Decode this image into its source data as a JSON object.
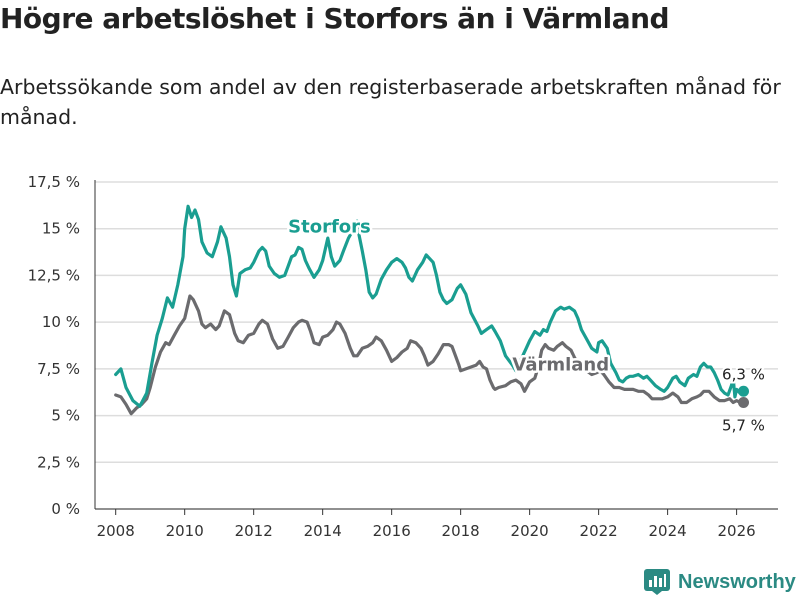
{
  "header": {
    "title": "Högre arbetslöshet i Storfors än i Värmland",
    "subtitle": "Arbetssökande som andel av den registerbaserade arbetskraften månad för månad."
  },
  "brand": {
    "name": "Newsworthy",
    "icon": "bar-chart-logo-icon"
  },
  "colors": {
    "storfors": "#1a9e91",
    "varmland": "#6b6b6e",
    "grid": "#dddddd",
    "axis": "#333333"
  },
  "chart_data": {
    "type": "line",
    "title": "Högre arbetslöshet i Storfors än i Värmland",
    "xlabel": "",
    "ylabel": "",
    "xlim": [
      2007.4,
      2027.2
    ],
    "ylim": [
      0,
      17.5
    ],
    "x_ticks": [
      2008,
      2010,
      2012,
      2014,
      2016,
      2018,
      2020,
      2022,
      2024,
      2026
    ],
    "x_tick_labels": [
      "2008",
      "2010",
      "2012",
      "2014",
      "2016",
      "2018",
      "2020",
      "2022",
      "2024",
      "2026"
    ],
    "y_ticks": [
      0,
      2.5,
      5,
      7.5,
      10,
      12.5,
      15,
      17.5
    ],
    "y_tick_labels": [
      "0 %",
      "2,5 %",
      "5 %",
      "7,5 %",
      "10 %",
      "12,5 %",
      "15 %",
      "17,5 %"
    ],
    "grid": true,
    "series": [
      {
        "name": "Storfors",
        "label_position": [
          2013.0,
          14.8
        ],
        "end_label": "6,3 %",
        "end_value": 6.3,
        "points": [
          [
            2008.0,
            7.2
          ],
          [
            2008.15,
            7.5
          ],
          [
            2008.3,
            6.5
          ],
          [
            2008.5,
            5.8
          ],
          [
            2008.7,
            5.5
          ],
          [
            2008.9,
            6.2
          ],
          [
            2009.05,
            7.8
          ],
          [
            2009.2,
            9.3
          ],
          [
            2009.35,
            10.2
          ],
          [
            2009.5,
            11.3
          ],
          [
            2009.65,
            10.8
          ],
          [
            2009.8,
            12.0
          ],
          [
            2009.95,
            13.5
          ],
          [
            2010.0,
            15.0
          ],
          [
            2010.1,
            16.2
          ],
          [
            2010.2,
            15.6
          ],
          [
            2010.3,
            16.0
          ],
          [
            2010.4,
            15.5
          ],
          [
            2010.5,
            14.3
          ],
          [
            2010.65,
            13.7
          ],
          [
            2010.8,
            13.5
          ],
          [
            2010.95,
            14.3
          ],
          [
            2011.05,
            15.1
          ],
          [
            2011.2,
            14.5
          ],
          [
            2011.3,
            13.5
          ],
          [
            2011.4,
            12.0
          ],
          [
            2011.5,
            11.4
          ],
          [
            2011.6,
            12.6
          ],
          [
            2011.75,
            12.8
          ],
          [
            2011.9,
            12.9
          ],
          [
            2012.0,
            13.2
          ],
          [
            2012.15,
            13.8
          ],
          [
            2012.25,
            14.0
          ],
          [
            2012.35,
            13.8
          ],
          [
            2012.45,
            13.0
          ],
          [
            2012.6,
            12.6
          ],
          [
            2012.75,
            12.4
          ],
          [
            2012.9,
            12.5
          ],
          [
            2013.0,
            13.0
          ],
          [
            2013.1,
            13.5
          ],
          [
            2013.2,
            13.6
          ],
          [
            2013.3,
            14.0
          ],
          [
            2013.4,
            13.9
          ],
          [
            2013.5,
            13.3
          ],
          [
            2013.6,
            12.9
          ],
          [
            2013.75,
            12.4
          ],
          [
            2013.9,
            12.8
          ],
          [
            2014.0,
            13.3
          ],
          [
            2014.15,
            14.5
          ],
          [
            2014.25,
            13.5
          ],
          [
            2014.35,
            13.0
          ],
          [
            2014.5,
            13.3
          ],
          [
            2014.6,
            13.8
          ],
          [
            2014.75,
            14.5
          ],
          [
            2014.9,
            15.0
          ],
          [
            2015.0,
            15.4
          ],
          [
            2015.05,
            14.7
          ],
          [
            2015.15,
            13.8
          ],
          [
            2015.25,
            12.8
          ],
          [
            2015.35,
            11.6
          ],
          [
            2015.45,
            11.3
          ],
          [
            2015.55,
            11.5
          ],
          [
            2015.7,
            12.3
          ],
          [
            2015.85,
            12.8
          ],
          [
            2016.0,
            13.2
          ],
          [
            2016.15,
            13.4
          ],
          [
            2016.3,
            13.2
          ],
          [
            2016.4,
            12.9
          ],
          [
            2016.5,
            12.4
          ],
          [
            2016.6,
            12.2
          ],
          [
            2016.75,
            12.8
          ],
          [
            2016.9,
            13.2
          ],
          [
            2017.0,
            13.6
          ],
          [
            2017.1,
            13.4
          ],
          [
            2017.2,
            13.2
          ],
          [
            2017.3,
            12.5
          ],
          [
            2017.4,
            11.6
          ],
          [
            2017.5,
            11.2
          ],
          [
            2017.6,
            11.0
          ],
          [
            2017.75,
            11.2
          ],
          [
            2017.9,
            11.8
          ],
          [
            2018.0,
            12.0
          ],
          [
            2018.15,
            11.5
          ],
          [
            2018.3,
            10.5
          ],
          [
            2018.5,
            9.8
          ],
          [
            2018.6,
            9.4
          ],
          [
            2018.75,
            9.6
          ],
          [
            2018.9,
            9.8
          ],
          [
            2019.0,
            9.5
          ],
          [
            2019.15,
            9.0
          ],
          [
            2019.3,
            8.2
          ],
          [
            2019.5,
            7.7
          ],
          [
            2019.6,
            7.4
          ],
          [
            2019.75,
            8.0
          ],
          [
            2019.9,
            8.6
          ],
          [
            2020.0,
            9.0
          ],
          [
            2020.15,
            9.5
          ],
          [
            2020.3,
            9.3
          ],
          [
            2020.4,
            9.6
          ],
          [
            2020.5,
            9.5
          ],
          [
            2020.6,
            10.0
          ],
          [
            2020.75,
            10.6
          ],
          [
            2020.9,
            10.8
          ],
          [
            2021.0,
            10.7
          ],
          [
            2021.15,
            10.8
          ],
          [
            2021.3,
            10.6
          ],
          [
            2021.4,
            10.2
          ],
          [
            2021.5,
            9.6
          ],
          [
            2021.65,
            9.1
          ],
          [
            2021.8,
            8.6
          ],
          [
            2021.95,
            8.4
          ],
          [
            2022.0,
            8.9
          ],
          [
            2022.1,
            9.0
          ],
          [
            2022.25,
            8.6
          ],
          [
            2022.35,
            7.8
          ],
          [
            2022.5,
            7.3
          ],
          [
            2022.6,
            6.9
          ],
          [
            2022.7,
            6.8
          ],
          [
            2022.8,
            7.0
          ],
          [
            2022.9,
            7.1
          ],
          [
            2023.0,
            7.1
          ],
          [
            2023.15,
            7.2
          ],
          [
            2023.3,
            7.0
          ],
          [
            2023.4,
            7.1
          ],
          [
            2023.5,
            6.9
          ],
          [
            2023.65,
            6.6
          ],
          [
            2023.8,
            6.4
          ],
          [
            2023.9,
            6.3
          ],
          [
            2024.0,
            6.5
          ],
          [
            2024.15,
            7.0
          ],
          [
            2024.25,
            7.1
          ],
          [
            2024.35,
            6.8
          ],
          [
            2024.5,
            6.6
          ],
          [
            2024.6,
            7.0
          ],
          [
            2024.75,
            7.2
          ],
          [
            2024.85,
            7.1
          ],
          [
            2024.95,
            7.6
          ],
          [
            2025.05,
            7.8
          ],
          [
            2025.15,
            7.6
          ],
          [
            2025.25,
            7.6
          ],
          [
            2025.35,
            7.3
          ],
          [
            2025.45,
            6.9
          ],
          [
            2025.55,
            6.4
          ],
          [
            2025.65,
            6.2
          ],
          [
            2025.75,
            6.1
          ],
          [
            2025.85,
            6.6
          ],
          [
            2025.9,
            7.0
          ],
          [
            2025.95,
            6.0
          ],
          [
            2026.0,
            6.4
          ],
          [
            2026.1,
            6.2
          ],
          [
            2026.2,
            6.3
          ]
        ]
      },
      {
        "name": "Värmland",
        "label_position": [
          2019.5,
          7.4
        ],
        "end_label": "5,7 %",
        "end_value": 5.7,
        "points": [
          [
            2008.0,
            6.1
          ],
          [
            2008.15,
            6.0
          ],
          [
            2008.3,
            5.6
          ],
          [
            2008.45,
            5.1
          ],
          [
            2008.6,
            5.4
          ],
          [
            2008.75,
            5.6
          ],
          [
            2008.9,
            5.9
          ],
          [
            2009.0,
            6.5
          ],
          [
            2009.15,
            7.6
          ],
          [
            2009.3,
            8.4
          ],
          [
            2009.45,
            8.9
          ],
          [
            2009.55,
            8.8
          ],
          [
            2009.7,
            9.3
          ],
          [
            2009.85,
            9.8
          ],
          [
            2010.0,
            10.2
          ],
          [
            2010.15,
            11.4
          ],
          [
            2010.25,
            11.2
          ],
          [
            2010.4,
            10.6
          ],
          [
            2010.5,
            9.9
          ],
          [
            2010.6,
            9.7
          ],
          [
            2010.75,
            9.9
          ],
          [
            2010.9,
            9.6
          ],
          [
            2011.0,
            9.8
          ],
          [
            2011.15,
            10.6
          ],
          [
            2011.3,
            10.4
          ],
          [
            2011.45,
            9.4
          ],
          [
            2011.55,
            9.0
          ],
          [
            2011.7,
            8.9
          ],
          [
            2011.85,
            9.3
          ],
          [
            2012.0,
            9.4
          ],
          [
            2012.15,
            9.9
          ],
          [
            2012.25,
            10.1
          ],
          [
            2012.4,
            9.9
          ],
          [
            2012.55,
            9.1
          ],
          [
            2012.7,
            8.6
          ],
          [
            2012.85,
            8.7
          ],
          [
            2013.0,
            9.2
          ],
          [
            2013.15,
            9.7
          ],
          [
            2013.3,
            10.0
          ],
          [
            2013.4,
            10.1
          ],
          [
            2013.55,
            10.0
          ],
          [
            2013.65,
            9.5
          ],
          [
            2013.75,
            8.9
          ],
          [
            2013.9,
            8.8
          ],
          [
            2014.0,
            9.2
          ],
          [
            2014.15,
            9.3
          ],
          [
            2014.3,
            9.6
          ],
          [
            2014.4,
            10.0
          ],
          [
            2014.5,
            9.9
          ],
          [
            2014.65,
            9.4
          ],
          [
            2014.8,
            8.6
          ],
          [
            2014.9,
            8.2
          ],
          [
            2015.0,
            8.2
          ],
          [
            2015.15,
            8.6
          ],
          [
            2015.3,
            8.7
          ],
          [
            2015.45,
            8.9
          ],
          [
            2015.55,
            9.2
          ],
          [
            2015.7,
            9.0
          ],
          [
            2015.85,
            8.5
          ],
          [
            2015.95,
            8.1
          ],
          [
            2016.0,
            7.9
          ],
          [
            2016.15,
            8.1
          ],
          [
            2016.3,
            8.4
          ],
          [
            2016.45,
            8.6
          ],
          [
            2016.55,
            9.0
          ],
          [
            2016.7,
            8.9
          ],
          [
            2016.85,
            8.6
          ],
          [
            2016.95,
            8.2
          ],
          [
            2017.05,
            7.7
          ],
          [
            2017.2,
            7.9
          ],
          [
            2017.35,
            8.3
          ],
          [
            2017.5,
            8.8
          ],
          [
            2017.65,
            8.8
          ],
          [
            2017.75,
            8.7
          ],
          [
            2017.85,
            8.2
          ],
          [
            2017.95,
            7.7
          ],
          [
            2018.0,
            7.4
          ],
          [
            2018.15,
            7.5
          ],
          [
            2018.3,
            7.6
          ],
          [
            2018.45,
            7.7
          ],
          [
            2018.55,
            7.9
          ],
          [
            2018.65,
            7.6
          ],
          [
            2018.75,
            7.5
          ],
          [
            2018.85,
            6.9
          ],
          [
            2018.95,
            6.5
          ],
          [
            2019.0,
            6.4
          ],
          [
            2019.1,
            6.5
          ],
          [
            2019.3,
            6.6
          ],
          [
            2019.45,
            6.8
          ],
          [
            2019.6,
            6.9
          ],
          [
            2019.75,
            6.7
          ],
          [
            2019.85,
            6.3
          ],
          [
            2020.0,
            6.8
          ],
          [
            2020.15,
            7.0
          ],
          [
            2020.25,
            7.6
          ],
          [
            2020.35,
            8.5
          ],
          [
            2020.45,
            8.8
          ],
          [
            2020.55,
            8.6
          ],
          [
            2020.7,
            8.5
          ],
          [
            2020.8,
            8.7
          ],
          [
            2020.95,
            8.9
          ],
          [
            2021.05,
            8.7
          ],
          [
            2021.2,
            8.5
          ],
          [
            2021.3,
            8.1
          ],
          [
            2021.45,
            7.7
          ],
          [
            2021.55,
            7.6
          ],
          [
            2021.65,
            7.4
          ],
          [
            2021.8,
            7.2
          ],
          [
            2021.95,
            7.3
          ],
          [
            2022.05,
            7.4
          ],
          [
            2022.15,
            7.2
          ],
          [
            2022.3,
            6.8
          ],
          [
            2022.45,
            6.5
          ],
          [
            2022.6,
            6.5
          ],
          [
            2022.75,
            6.4
          ],
          [
            2022.9,
            6.4
          ],
          [
            2023.0,
            6.4
          ],
          [
            2023.15,
            6.3
          ],
          [
            2023.3,
            6.3
          ],
          [
            2023.45,
            6.1
          ],
          [
            2023.55,
            5.9
          ],
          [
            2023.7,
            5.9
          ],
          [
            2023.85,
            5.9
          ],
          [
            2024.0,
            6.0
          ],
          [
            2024.15,
            6.2
          ],
          [
            2024.3,
            6.0
          ],
          [
            2024.4,
            5.7
          ],
          [
            2024.55,
            5.7
          ],
          [
            2024.7,
            5.9
          ],
          [
            2024.85,
            6.0
          ],
          [
            2024.95,
            6.1
          ],
          [
            2025.05,
            6.3
          ],
          [
            2025.2,
            6.3
          ],
          [
            2025.35,
            6.0
          ],
          [
            2025.5,
            5.8
          ],
          [
            2025.65,
            5.8
          ],
          [
            2025.8,
            5.9
          ],
          [
            2025.9,
            5.7
          ],
          [
            2026.0,
            5.8
          ],
          [
            2026.1,
            5.7
          ],
          [
            2026.2,
            5.7
          ]
        ]
      }
    ]
  }
}
